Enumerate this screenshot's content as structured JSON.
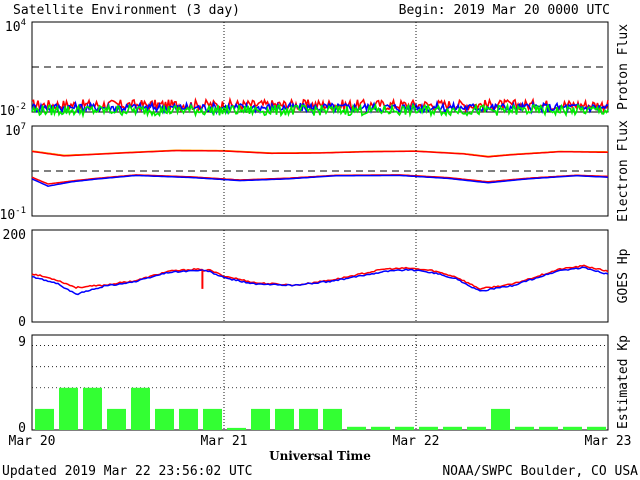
{
  "header": {
    "title": "Satellite Environment (3 day)",
    "begin": "Begin:  2019 Mar 20 0000 UTC"
  },
  "footer": {
    "updated": "Updated 2019 Mar 22 23:56:02 UTC",
    "credit": "NOAA/SWPC Boulder, CO USA"
  },
  "colors": {
    "red": "#ff0000",
    "blue": "#0000ff",
    "green": "#00ee00",
    "orange": "#ffa500",
    "kp_bar": "#33ff33",
    "frame": "#000000"
  },
  "chart_data": [
    {
      "type": "line",
      "ylabel": "Proton Flux",
      "yscale": "log",
      "ylim": [
        0.01,
        10000
      ],
      "yticks": [
        {
          "base": "10",
          "exp": "4"
        },
        {
          "base": "10",
          "exp": "-2"
        }
      ],
      "xlim": [
        0,
        72
      ],
      "threshold": 10,
      "series": [
        {
          "color": "#ff0000",
          "x": [
            0,
            72
          ],
          "y": [
            0.03,
            0.03
          ],
          "jitter": 0.35
        },
        {
          "color": "#0000ff",
          "x": [
            0,
            72
          ],
          "y": [
            0.02,
            0.02
          ],
          "jitter": 0.3
        },
        {
          "color": "#00ee00",
          "x": [
            0,
            72
          ],
          "y": [
            0.013,
            0.013
          ],
          "jitter": 0.35
        }
      ]
    },
    {
      "type": "line",
      "ylabel": "Electron Flux",
      "yscale": "log",
      "ylim": [
        0.1,
        10000000
      ],
      "yticks": [
        {
          "base": "10",
          "exp": "7"
        },
        {
          "base": "10",
          "exp": "-1"
        }
      ],
      "xlim": [
        0,
        72
      ],
      "threshold": 1000,
      "series": [
        {
          "color": "#ffa500",
          "x": [
            0,
            4,
            7,
            12,
            18,
            24,
            30,
            36,
            42,
            48,
            54,
            57,
            60,
            66,
            72
          ],
          "y": [
            60000,
            25000,
            30000,
            45000,
            70000,
            65000,
            40000,
            42000,
            55000,
            60000,
            35000,
            20000,
            30000,
            55000,
            50000
          ]
        },
        {
          "color": "#ff0000",
          "x": [
            0,
            4,
            7,
            12,
            18,
            24,
            30,
            36,
            42,
            48,
            54,
            57,
            60,
            66,
            72
          ],
          "y": [
            55000,
            22000,
            28000,
            42000,
            65000,
            60000,
            37000,
            40000,
            52000,
            57000,
            33000,
            18000,
            28000,
            52000,
            46000
          ]
        },
        {
          "color": "#ff0000",
          "x": [
            0,
            2,
            5,
            8,
            13,
            20,
            26,
            32,
            38,
            46,
            52,
            57,
            62,
            68,
            72
          ],
          "y": [
            280,
            70,
            130,
            220,
            450,
            300,
            160,
            230,
            420,
            450,
            260,
            110,
            230,
            420,
            330
          ]
        },
        {
          "color": "#0000ff",
          "x": [
            0,
            2,
            5,
            8,
            13,
            20,
            26,
            32,
            38,
            46,
            52,
            57,
            62,
            68,
            72
          ],
          "y": [
            200,
            45,
            110,
            190,
            400,
            260,
            140,
            200,
            380,
            400,
            220,
            90,
            200,
            380,
            280
          ]
        }
      ]
    },
    {
      "type": "line",
      "ylabel": "GOES Hp",
      "ylim": [
        0,
        200
      ],
      "yticks": [
        {
          "value": "200"
        },
        {
          "value": "0"
        }
      ],
      "xlim": [
        0,
        72
      ],
      "series": [
        {
          "color": "#ff0000",
          "x": [
            0,
            3,
            5.5,
            9,
            13,
            17,
            20.5,
            21.5,
            22,
            24,
            28,
            33,
            38,
            44,
            47,
            50,
            53,
            56,
            60,
            66,
            69,
            72
          ],
          "y": [
            105,
            92,
            75,
            80,
            90,
            110,
            115,
            112,
            114,
            100,
            85,
            80,
            93,
            115,
            117,
            112,
            98,
            72,
            82,
            115,
            122,
            110
          ]
        },
        {
          "color": "#0000ff",
          "x": [
            0,
            3,
            5.5,
            9,
            13,
            17,
            20.5,
            22,
            24,
            28,
            33,
            38,
            44,
            47,
            50,
            53,
            56,
            60,
            66,
            69,
            72
          ],
          "y": [
            98,
            85,
            60,
            78,
            88,
            108,
            112,
            111,
            96,
            82,
            80,
            90,
            110,
            114,
            108,
            94,
            67,
            79,
            112,
            118,
            104
          ]
        }
      ],
      "spike": {
        "color": "#ff0000",
        "x": 21.3,
        "y": [
          112,
          72
        ]
      }
    },
    {
      "type": "bar",
      "ylabel": "Estimated Kp",
      "ylim": [
        0,
        9
      ],
      "yticks": [
        {
          "value": "9"
        },
        {
          "value": "0"
        }
      ],
      "xlim": [
        0,
        72
      ],
      "gridlines": [
        4,
        6,
        8
      ],
      "bar_width_hours": 3,
      "values": [
        2,
        4,
        4,
        2,
        4,
        2,
        2,
        2,
        0.2,
        2,
        2,
        2,
        2,
        0.3,
        0.3,
        0.3,
        0.3,
        0.3,
        0.3,
        2,
        0.3,
        0.3,
        0.3,
        0.3
      ]
    }
  ],
  "xaxis": {
    "title": "Universal Time",
    "labels": [
      {
        "text": "Mar 20",
        "x": 0
      },
      {
        "text": "Mar 21",
        "x": 24
      },
      {
        "text": "Mar 22",
        "x": 48
      },
      {
        "text": "Mar 23",
        "x": 72
      }
    ]
  }
}
